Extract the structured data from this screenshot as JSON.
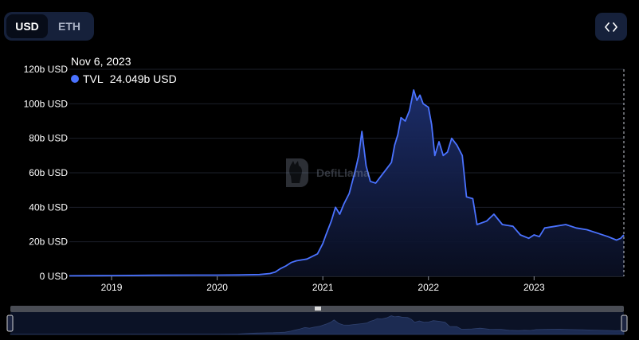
{
  "currency_toggle": {
    "options": [
      "USD",
      "ETH"
    ],
    "selected": "USD"
  },
  "embed_icon": "code-brackets-icon",
  "tooltip": {
    "date": "Nov 6, 2023",
    "series_name": "TVL",
    "value_text": "24.049b USD"
  },
  "watermark": {
    "text": "DefiLlama"
  },
  "colors": {
    "background": "#000000",
    "line": "#4a72ff",
    "toggle_bg": "#16213b",
    "grid": "#1b1f2a"
  },
  "chart_data": {
    "type": "area",
    "title": "",
    "xlabel": "",
    "ylabel": "",
    "ylim": [
      0,
      120
    ],
    "y_ticks": [
      0,
      20,
      40,
      60,
      80,
      100,
      120
    ],
    "y_tick_labels": [
      "0 USD",
      "20b USD",
      "40b USD",
      "60b USD",
      "80b USD",
      "100b USD",
      "120b USD"
    ],
    "x_ticks": [
      2019,
      2020,
      2021,
      2022,
      2023
    ],
    "x_tick_labels": [
      "2019",
      "2020",
      "2021",
      "2022",
      "2023"
    ],
    "xlim": [
      2018.6,
      2023.85
    ],
    "grid": true,
    "legend": "none",
    "series": [
      {
        "name": "TVL",
        "unit": "b USD",
        "points": [
          [
            2018.6,
            0.3
          ],
          [
            2019.0,
            0.4
          ],
          [
            2019.4,
            0.6
          ],
          [
            2019.8,
            0.7
          ],
          [
            2020.0,
            0.7
          ],
          [
            2020.2,
            0.8
          ],
          [
            2020.4,
            1.0
          ],
          [
            2020.5,
            1.6
          ],
          [
            2020.55,
            2.5
          ],
          [
            2020.6,
            4.5
          ],
          [
            2020.65,
            6.0
          ],
          [
            2020.7,
            8.0
          ],
          [
            2020.75,
            9.0
          ],
          [
            2020.8,
            9.5
          ],
          [
            2020.85,
            10.0
          ],
          [
            2020.9,
            11.5
          ],
          [
            2020.95,
            13.0
          ],
          [
            2021.0,
            19.0
          ],
          [
            2021.03,
            24.0
          ],
          [
            2021.08,
            32.0
          ],
          [
            2021.12,
            40.0
          ],
          [
            2021.16,
            36.0
          ],
          [
            2021.2,
            42.0
          ],
          [
            2021.25,
            48.0
          ],
          [
            2021.28,
            55.0
          ],
          [
            2021.31,
            62.0
          ],
          [
            2021.34,
            70.0
          ],
          [
            2021.37,
            84.0
          ],
          [
            2021.41,
            64.0
          ],
          [
            2021.45,
            55.0
          ],
          [
            2021.5,
            54.0
          ],
          [
            2021.55,
            58.0
          ],
          [
            2021.6,
            62.0
          ],
          [
            2021.65,
            66.0
          ],
          [
            2021.68,
            76.0
          ],
          [
            2021.71,
            82.0
          ],
          [
            2021.74,
            92.0
          ],
          [
            2021.78,
            90.0
          ],
          [
            2021.82,
            96.0
          ],
          [
            2021.86,
            108.0
          ],
          [
            2021.89,
            102.0
          ],
          [
            2021.92,
            105.0
          ],
          [
            2021.95,
            100.0
          ],
          [
            2022.0,
            98.0
          ],
          [
            2022.03,
            88.0
          ],
          [
            2022.06,
            70.0
          ],
          [
            2022.1,
            78.0
          ],
          [
            2022.14,
            70.0
          ],
          [
            2022.18,
            72.0
          ],
          [
            2022.22,
            80.0
          ],
          [
            2022.27,
            76.0
          ],
          [
            2022.32,
            70.0
          ],
          [
            2022.36,
            46.0
          ],
          [
            2022.42,
            45.0
          ],
          [
            2022.46,
            30.0
          ],
          [
            2022.55,
            32.0
          ],
          [
            2022.62,
            36.0
          ],
          [
            2022.7,
            30.0
          ],
          [
            2022.8,
            29.0
          ],
          [
            2022.87,
            24.0
          ],
          [
            2022.95,
            22.0
          ],
          [
            2023.0,
            24.0
          ],
          [
            2023.05,
            23.0
          ],
          [
            2023.1,
            28.0
          ],
          [
            2023.2,
            29.0
          ],
          [
            2023.3,
            30.0
          ],
          [
            2023.4,
            28.0
          ],
          [
            2023.5,
            27.0
          ],
          [
            2023.6,
            25.0
          ],
          [
            2023.7,
            23.0
          ],
          [
            2023.78,
            21.0
          ],
          [
            2023.82,
            22.0
          ],
          [
            2023.85,
            24.0
          ]
        ]
      }
    ]
  }
}
